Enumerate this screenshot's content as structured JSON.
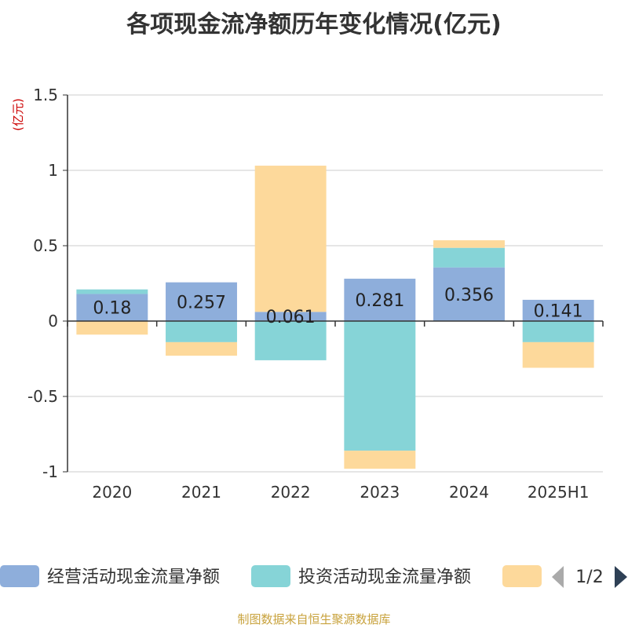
{
  "chart_data": {
    "type": "bar",
    "stacked": true,
    "title": "各项现金流净额历年变化情况(亿元)",
    "ylabel": "(亿元)",
    "categories": [
      "2020",
      "2021",
      "2022",
      "2023",
      "2024",
      "2025H1"
    ],
    "ylim": [
      -1,
      1.5
    ],
    "yticks": [
      1.5,
      1,
      0.5,
      0,
      -0.5,
      -1
    ],
    "ytick_labels": [
      "1.5",
      "1",
      "0.5",
      "0",
      "-0.5",
      "-1"
    ],
    "grid": true,
    "legend_position": "bottom",
    "series": [
      {
        "name": "经营活动现金流量净额",
        "color": "#8eaedb",
        "values": [
          0.18,
          0.257,
          0.061,
          0.281,
          0.356,
          0.141
        ],
        "labels": [
          "0.18",
          "0.257",
          "0.061",
          "0.281",
          "0.356",
          "0.141"
        ]
      },
      {
        "name": "投资活动现金流量净额",
        "color": "#86d4d7",
        "values": [
          0.03,
          -0.14,
          -0.26,
          -0.86,
          0.13,
          -0.14
        ]
      },
      {
        "name": "",
        "color": "#fdd99b",
        "values": [
          -0.09,
          -0.09,
          0.97,
          -0.12,
          0.05,
          -0.17
        ]
      }
    ]
  },
  "legend_pager": {
    "text": "1/2"
  },
  "footer": {
    "source": "制图数据来自恒生聚源数据库"
  }
}
